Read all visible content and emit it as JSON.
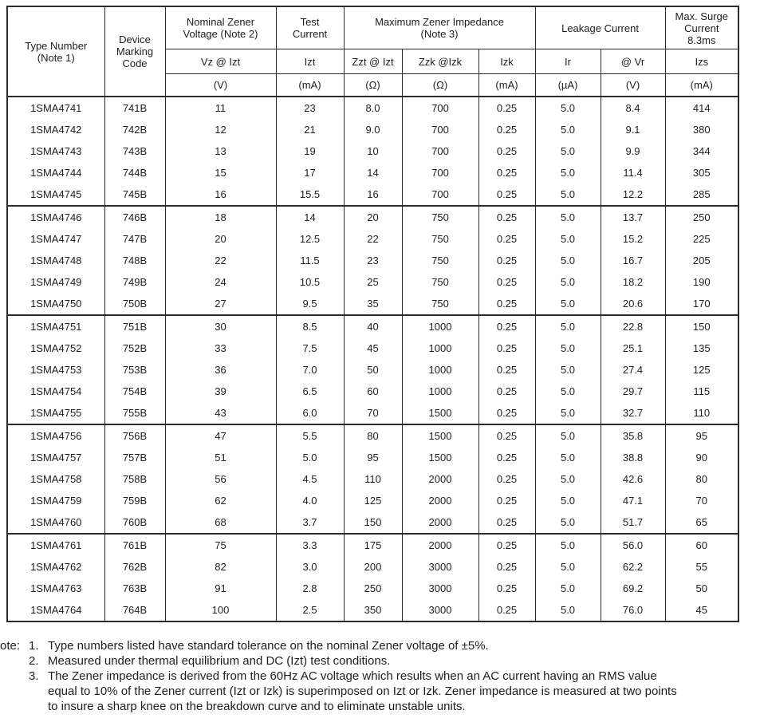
{
  "table": {
    "header": {
      "type_number": "Type Number\n(Note 1)",
      "device_marking_code": "Device\nMarking\nCode",
      "nominal_zener_voltage": "Nominal Zener\nVoltage (Note 2)",
      "test_current": "Test\nCurrent",
      "max_zener_impedance": "Maximum Zener Impedance\n(Note 3)",
      "leakage_current": "Leakage Current",
      "max_surge_current": "Max. Surge\nCurrent\n8.3ms"
    },
    "subheaders": [
      "Vz @ Izt",
      "Izt",
      "Zzt @ Izt",
      "Zzk @Izk",
      "Izk",
      "Ir",
      "@ Vr",
      "Izs"
    ],
    "units": [
      "(V)",
      "(mA)",
      "(Ω)",
      "(Ω)",
      "(mA)",
      "(µA)",
      "(V)",
      "(mA)"
    ],
    "columns": [
      "Type Number",
      "Device Marking Code",
      "Vz @ Izt (V)",
      "Izt (mA)",
      "Zzt @ Izt (Ω)",
      "Zzk @Izk (Ω)",
      "Izk (mA)",
      "Ir (µA)",
      "@ Vr (V)",
      "Izs (mA)"
    ],
    "groups": [
      [
        [
          "1SMA4741",
          "741B",
          "11",
          "23",
          "8.0",
          "700",
          "0.25",
          "5.0",
          "8.4",
          "414"
        ],
        [
          "1SMA4742",
          "742B",
          "12",
          "21",
          "9.0",
          "700",
          "0.25",
          "5.0",
          "9.1",
          "380"
        ],
        [
          "1SMA4743",
          "743B",
          "13",
          "19",
          "10",
          "700",
          "0.25",
          "5.0",
          "9.9",
          "344"
        ],
        [
          "1SMA4744",
          "744B",
          "15",
          "17",
          "14",
          "700",
          "0.25",
          "5.0",
          "11.4",
          "305"
        ],
        [
          "1SMA4745",
          "745B",
          "16",
          "15.5",
          "16",
          "700",
          "0.25",
          "5.0",
          "12.2",
          "285"
        ]
      ],
      [
        [
          "1SMA4746",
          "746B",
          "18",
          "14",
          "20",
          "750",
          "0.25",
          "5.0",
          "13.7",
          "250"
        ],
        [
          "1SMA4747",
          "747B",
          "20",
          "12.5",
          "22",
          "750",
          "0.25",
          "5.0",
          "15.2",
          "225"
        ],
        [
          "1SMA4748",
          "748B",
          "22",
          "11.5",
          "23",
          "750",
          "0.25",
          "5.0",
          "16.7",
          "205"
        ],
        [
          "1SMA4749",
          "749B",
          "24",
          "10.5",
          "25",
          "750",
          "0.25",
          "5.0",
          "18.2",
          "190"
        ],
        [
          "1SMA4750",
          "750B",
          "27",
          "9.5",
          "35",
          "750",
          "0.25",
          "5.0",
          "20.6",
          "170"
        ]
      ],
      [
        [
          "1SMA4751",
          "751B",
          "30",
          "8.5",
          "40",
          "1000",
          "0.25",
          "5.0",
          "22.8",
          "150"
        ],
        [
          "1SMA4752",
          "752B",
          "33",
          "7.5",
          "45",
          "1000",
          "0.25",
          "5.0",
          "25.1",
          "135"
        ],
        [
          "1SMA4753",
          "753B",
          "36",
          "7.0",
          "50",
          "1000",
          "0.25",
          "5.0",
          "27.4",
          "125"
        ],
        [
          "1SMA4754",
          "754B",
          "39",
          "6.5",
          "60",
          "1000",
          "0.25",
          "5.0",
          "29.7",
          "115"
        ],
        [
          "1SMA4755",
          "755B",
          "43",
          "6.0",
          "70",
          "1500",
          "0.25",
          "5.0",
          "32.7",
          "110"
        ]
      ],
      [
        [
          "1SMA4756",
          "756B",
          "47",
          "5.5",
          "80",
          "1500",
          "0.25",
          "5.0",
          "35.8",
          "95"
        ],
        [
          "1SMA4757",
          "757B",
          "51",
          "5.0",
          "95",
          "1500",
          "0.25",
          "5.0",
          "38.8",
          "90"
        ],
        [
          "1SMA4758",
          "758B",
          "56",
          "4.5",
          "110",
          "2000",
          "0.25",
          "5.0",
          "42.6",
          "80"
        ],
        [
          "1SMA4759",
          "759B",
          "62",
          "4.0",
          "125",
          "2000",
          "0.25",
          "5.0",
          "47.1",
          "70"
        ],
        [
          "1SMA4760",
          "760B",
          "68",
          "3.7",
          "150",
          "2000",
          "0.25",
          "5.0",
          "51.7",
          "65"
        ]
      ],
      [
        [
          "1SMA4761",
          "761B",
          "75",
          "3.3",
          "175",
          "2000",
          "0.25",
          "5.0",
          "56.0",
          "60"
        ],
        [
          "1SMA4762",
          "762B",
          "82",
          "3.0",
          "200",
          "3000",
          "0.25",
          "5.0",
          "62.2",
          "55"
        ],
        [
          "1SMA4763",
          "763B",
          "91",
          "2.8",
          "250",
          "3000",
          "0.25",
          "5.0",
          "69.2",
          "50"
        ],
        [
          "1SMA4764",
          "764B",
          "100",
          "2.5",
          "350",
          "3000",
          "0.25",
          "5.0",
          "76.0",
          "45"
        ]
      ]
    ]
  },
  "notes": {
    "label": "ote:",
    "items": [
      {
        "num": "1.",
        "text": "Type numbers listed have standard tolerance on the nominal Zener voltage of ±5%."
      },
      {
        "num": "2.",
        "text": "Measured under thermal equilibrium and DC (Izt) test conditions."
      },
      {
        "num": "3.",
        "text": "The Zener impedance is derived from the 60Hz AC voltage which results when an AC current having an RMS value\nequal to 10% of the Zener current (Izt or Izk) is superimposed on Izt or Izk. Zener impedance is measured at two points\nto insure a sharp knee on the breakdown curve and to eliminate unstable units."
      }
    ]
  }
}
